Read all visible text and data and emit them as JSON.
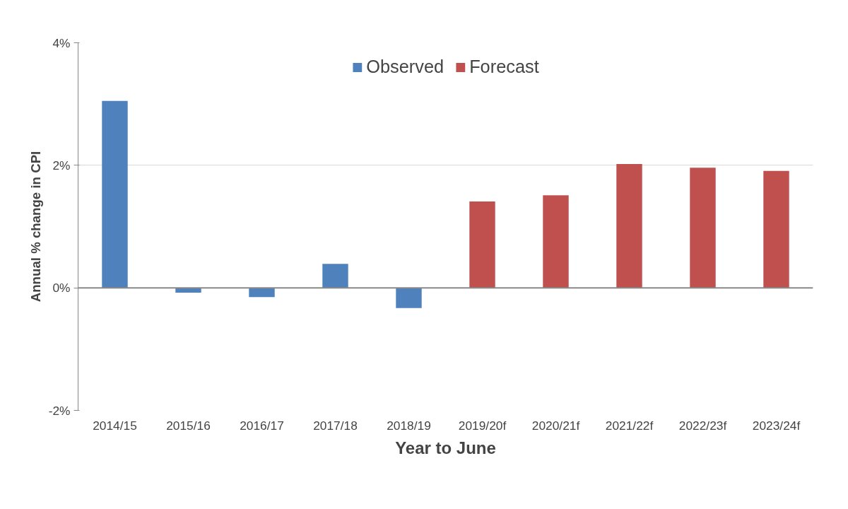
{
  "chart_data": {
    "type": "bar",
    "xlabel": "Year to June",
    "ylabel": "Annual % change in CPI",
    "categories": [
      "2014/15",
      "2015/16",
      "2016/17",
      "2017/18",
      "2018/19",
      "2019/20f",
      "2020/21f",
      "2021/22f",
      "2022/23f",
      "2023/24f"
    ],
    "series": [
      {
        "name": "Observed",
        "color": "#4f81bd",
        "values": [
          3.05,
          -0.08,
          -0.15,
          0.39,
          -0.33,
          null,
          null,
          null,
          null,
          null
        ]
      },
      {
        "name": "Forecast",
        "color": "#c0504d",
        "values": [
          null,
          null,
          null,
          null,
          null,
          1.41,
          1.51,
          2.02,
          1.96,
          1.91
        ]
      }
    ],
    "stacked": true,
    "ylim": [
      -2,
      4
    ],
    "yticks": [
      {
        "value": -2,
        "label": "-2%"
      },
      {
        "value": 0,
        "label": "0%"
      },
      {
        "value": 2,
        "label": "2%"
      },
      {
        "value": 4,
        "label": "4%"
      }
    ],
    "grid": "y",
    "legend": "top"
  }
}
